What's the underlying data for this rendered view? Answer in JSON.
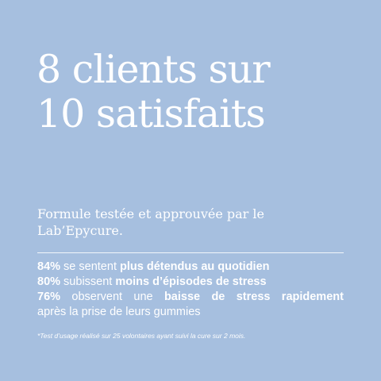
{
  "headline": {
    "line1": "8 clients sur",
    "line2": "10 satisfaits"
  },
  "subtitle": {
    "line1": "Formule testée et approuvée par le",
    "line2": "Lab’Epycure."
  },
  "stats": {
    "s1": {
      "pct": "84%",
      "text": " se sentent ",
      "bold": "plus détendus au quotidien"
    },
    "s2": {
      "pct": "80%",
      "text": " subissent ",
      "bold": "moins d’épisodes de stress"
    },
    "s3": {
      "pct": "76%",
      "w1": "observent",
      "w2": "une",
      "b1": "baisse",
      "b2": "de",
      "b3": "stress",
      "b4": "rapidement",
      "tail": "après la prise de leurs gummies"
    }
  },
  "footnote": "*Test d’usage réalisé sur 25 volontaires ayant suivi la cure sur 2 mois.",
  "colors": {
    "background": "#a6bfdf",
    "text": "#ffffff"
  }
}
